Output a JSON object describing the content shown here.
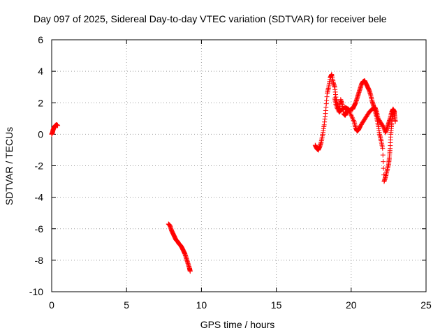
{
  "chart_data": {
    "type": "scatter",
    "title": "Day 097 of 2025, Sidereal Day-to-day VTEC variation (SDTVAR) for receiver bele",
    "xlabel": "GPS time / hours",
    "ylabel": "SDTVAR / TECUs",
    "xlim": [
      0,
      25
    ],
    "ylim": [
      -10,
      6
    ],
    "x_ticks": [
      0,
      5,
      10,
      15,
      20,
      25
    ],
    "y_ticks": [
      -10,
      -8,
      -6,
      -4,
      -2,
      0,
      2,
      4,
      6
    ],
    "grid": true,
    "marker": "plus",
    "color": "#ff0000",
    "series": [
      {
        "name": "SDTVAR",
        "segments": [
          [
            [
              0.0,
              0.0
            ],
            [
              0.05,
              0.1
            ],
            [
              0.1,
              0.3
            ],
            [
              0.15,
              0.4
            ],
            [
              0.2,
              0.5
            ],
            [
              0.25,
              0.55
            ],
            [
              0.3,
              0.6
            ],
            [
              0.35,
              0.6
            ],
            [
              0.4,
              0.55
            ]
          ],
          [
            [
              7.8,
              -5.7
            ],
            [
              7.9,
              -5.8
            ],
            [
              8.0,
              -6.1
            ],
            [
              8.1,
              -6.3
            ],
            [
              8.2,
              -6.5
            ],
            [
              8.3,
              -6.7
            ],
            [
              8.4,
              -6.8
            ],
            [
              8.5,
              -6.95
            ],
            [
              8.6,
              -7.05
            ],
            [
              8.7,
              -7.2
            ],
            [
              8.8,
              -7.4
            ],
            [
              8.9,
              -7.6
            ],
            [
              9.0,
              -7.9
            ],
            [
              9.1,
              -8.2
            ],
            [
              9.2,
              -8.5
            ],
            [
              9.25,
              -8.7
            ]
          ],
          [
            [
              17.6,
              -0.7
            ],
            [
              17.7,
              -0.9
            ],
            [
              17.8,
              -1.0
            ],
            [
              17.9,
              -0.8
            ],
            [
              18.0,
              -0.5
            ],
            [
              18.1,
              0.0
            ],
            [
              18.2,
              0.6
            ],
            [
              18.3,
              1.5
            ],
            [
              18.4,
              2.6
            ],
            [
              18.5,
              3.0
            ],
            [
              18.6,
              3.6
            ],
            [
              18.7,
              3.8
            ],
            [
              18.8,
              3.3
            ],
            [
              18.9,
              3.0
            ],
            [
              19.0,
              2.2
            ],
            [
              19.1,
              1.8
            ],
            [
              19.2,
              1.5
            ],
            [
              19.3,
              2.2
            ],
            [
              19.4,
              1.9
            ],
            [
              19.5,
              1.3
            ],
            [
              19.6,
              1.2
            ],
            [
              19.7,
              1.4
            ],
            [
              19.8,
              1.6
            ],
            [
              19.9,
              1.5
            ],
            [
              20.0,
              1.6
            ],
            [
              20.1,
              1.6
            ],
            [
              20.2,
              1.8
            ],
            [
              20.3,
              2.0
            ],
            [
              20.4,
              2.3
            ],
            [
              20.5,
              2.6
            ],
            [
              20.6,
              2.9
            ],
            [
              20.7,
              3.2
            ],
            [
              20.8,
              3.35
            ],
            [
              20.9,
              3.4
            ],
            [
              21.0,
              3.2
            ],
            [
              21.1,
              3.0
            ],
            [
              21.2,
              2.8
            ],
            [
              21.3,
              2.5
            ],
            [
              21.4,
              2.1
            ],
            [
              21.5,
              1.8
            ],
            [
              21.6,
              1.5
            ],
            [
              21.7,
              1.1
            ],
            [
              21.8,
              0.6
            ],
            [
              21.9,
              0.0
            ],
            [
              22.0,
              -0.4
            ],
            [
              22.1,
              -0.9
            ],
            [
              22.2,
              -3.0
            ],
            [
              22.3,
              -2.7
            ],
            [
              22.4,
              -2.3
            ],
            [
              22.5,
              -1.9
            ],
            [
              22.55,
              -1.5
            ],
            [
              22.6,
              -0.9
            ],
            [
              22.65,
              0.0
            ],
            [
              22.7,
              0.6
            ],
            [
              22.75,
              1.1
            ],
            [
              22.8,
              1.4
            ],
            [
              22.85,
              1.5
            ],
            [
              22.9,
              1.2
            ],
            [
              22.95,
              0.8
            ]
          ],
          [
            [
              18.9,
              2.3
            ],
            [
              19.0,
              1.8
            ],
            [
              19.2,
              1.4
            ],
            [
              19.4,
              1.6
            ],
            [
              19.6,
              1.7
            ],
            [
              19.8,
              1.6
            ],
            [
              20.0,
              1.2
            ],
            [
              20.2,
              0.8
            ],
            [
              20.3,
              0.4
            ],
            [
              20.4,
              0.2
            ],
            [
              20.5,
              0.3
            ],
            [
              20.6,
              0.5
            ],
            [
              20.8,
              0.8
            ],
            [
              21.0,
              1.1
            ],
            [
              21.2,
              1.4
            ],
            [
              21.4,
              1.6
            ],
            [
              21.6,
              1.7
            ],
            [
              21.7,
              1.4
            ],
            [
              21.8,
              1.0
            ],
            [
              22.0,
              0.7
            ],
            [
              22.2,
              0.4
            ],
            [
              22.3,
              0.1
            ],
            [
              22.4,
              0.4
            ],
            [
              22.5,
              0.7
            ],
            [
              22.6,
              1.0
            ],
            [
              22.7,
              1.4
            ],
            [
              22.8,
              1.6
            ],
            [
              22.9,
              1.4
            ]
          ]
        ]
      }
    ]
  }
}
